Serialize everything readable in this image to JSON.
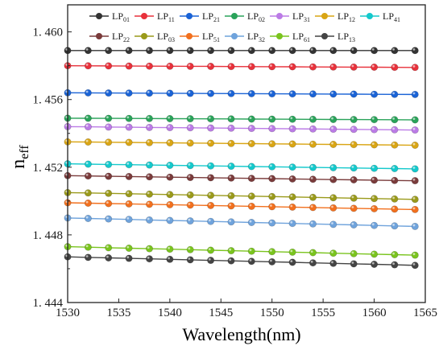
{
  "chart_data": {
    "type": "line",
    "xlabel": "Wavelength(nm)",
    "ylabel_main": "n",
    "ylabel_sub": "eff",
    "xlim": [
      1530,
      1565
    ],
    "ylim": [
      1.444,
      1.4616
    ],
    "x_ticks": [
      1530,
      1535,
      1540,
      1545,
      1550,
      1555,
      1560,
      1565
    ],
    "x_tick_labels": [
      "1530",
      "1535",
      "1540",
      "1545",
      "1550",
      "1555",
      "1560",
      "1565"
    ],
    "y_ticks": [
      1.444,
      1.448,
      1.452,
      1.456,
      1.46
    ],
    "y_tick_labels": [
      "1. 444",
      "1. 448",
      "1. 452",
      "1. 456",
      "1. 460"
    ],
    "grid": false,
    "legend_placement": "top",
    "x": [
      1530,
      1532,
      1534,
      1536,
      1538,
      1540,
      1542,
      1544,
      1546,
      1548,
      1550,
      1552,
      1554,
      1556,
      1558,
      1560,
      1562,
      1564
    ],
    "series": [
      {
        "prefix": "LP",
        "sub": "01",
        "color": "#333333",
        "y_start": 1.4589,
        "y_end": 1.4589
      },
      {
        "prefix": "LP",
        "sub": "11",
        "color": "#e8313b",
        "y_start": 1.458,
        "y_end": 1.4579
      },
      {
        "prefix": "LP",
        "sub": "21",
        "color": "#1a63d6",
        "y_start": 1.4564,
        "y_end": 1.4563
      },
      {
        "prefix": "LP",
        "sub": "02",
        "color": "#2aa35a",
        "y_start": 1.4549,
        "y_end": 1.4548
      },
      {
        "prefix": "LP",
        "sub": "31",
        "color": "#bb7be6",
        "y_start": 1.4544,
        "y_end": 1.4542
      },
      {
        "prefix": "LP",
        "sub": "12",
        "color": "#d9a514",
        "y_start": 1.4535,
        "y_end": 1.4533
      },
      {
        "prefix": "LP",
        "sub": "41",
        "color": "#14c9cc",
        "y_start": 1.4522,
        "y_end": 1.4519
      },
      {
        "prefix": "LP",
        "sub": "22",
        "color": "#7a3b3b",
        "y_start": 1.4515,
        "y_end": 1.4512
      },
      {
        "prefix": "LP",
        "sub": "03",
        "color": "#9a9a1a",
        "y_start": 1.4505,
        "y_end": 1.4501
      },
      {
        "prefix": "LP",
        "sub": "51",
        "color": "#f2701e",
        "y_start": 1.4499,
        "y_end": 1.4495
      },
      {
        "prefix": "LP",
        "sub": "32",
        "color": "#6fa3dc",
        "y_start": 1.449,
        "y_end": 1.4485
      },
      {
        "prefix": "LP",
        "sub": "61",
        "color": "#7ac41e",
        "y_start": 1.4473,
        "y_end": 1.4468
      },
      {
        "prefix": "LP",
        "sub": "13",
        "color": "#444444",
        "y_start": 1.4467,
        "y_end": 1.4462
      }
    ]
  }
}
